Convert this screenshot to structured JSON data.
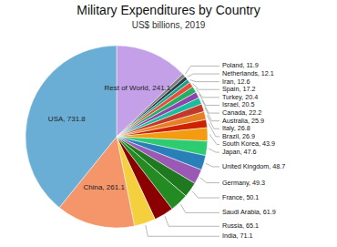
{
  "chart_data": {
    "type": "pie",
    "title": "Military Expenditures by Country",
    "subtitle": "US$ billions, 2019",
    "categories": [
      "Rest of World",
      "Poland",
      "Netherlands",
      "Iran",
      "Spain",
      "Turkey",
      "Israel",
      "Canada",
      "Australia",
      "Italy",
      "Brazil",
      "South Korea",
      "Japan",
      "United Kingdom",
      "Germany",
      "France",
      "Saudi Arabia",
      "Russia",
      "India",
      "China",
      "USA"
    ],
    "values": [
      241.1,
      11.9,
      12.1,
      12.6,
      17.2,
      20.4,
      20.5,
      22.2,
      25.9,
      26.8,
      26.9,
      43.9,
      47.6,
      48.7,
      49.3,
      50.1,
      61.9,
      65.1,
      71.1,
      261.1,
      731.8
    ],
    "colors": [
      "#c4a0e8",
      "#808080",
      "#2c3e50",
      "#17a589",
      "#e74c3c",
      "#27ae60",
      "#8e44ad",
      "#1abc9c",
      "#c0392b",
      "#e67e22",
      "#cc2200",
      "#f39c12",
      "#2ecc71",
      "#2980b9",
      "#9b59b6",
      "#1f7a1f",
      "#228b22",
      "#8b0000",
      "#f4d03f",
      "#f4956a",
      "#6aaed6"
    ],
    "data_labels": true
  }
}
